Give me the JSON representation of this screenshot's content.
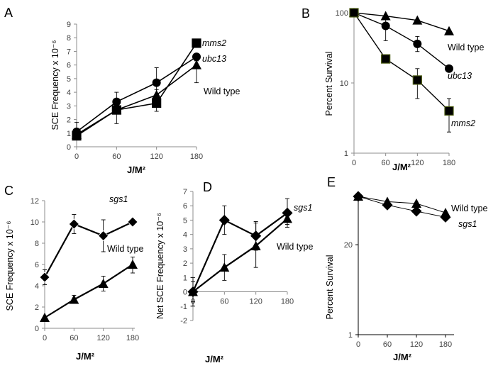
{
  "chart_data": [
    {
      "panel": "A",
      "type": "line",
      "title": "",
      "xlabel": "J/M²",
      "ylabel": "SCE Frequency x 10⁻⁶",
      "x": [
        0,
        60,
        120,
        180
      ],
      "xticks": [
        "0",
        "60",
        "120",
        "180"
      ],
      "yticks": [
        "0",
        "1",
        "2",
        "3",
        "4",
        "5",
        "6",
        "7",
        "8",
        "9"
      ],
      "ylim": [
        0,
        9
      ],
      "yscale": "linear",
      "grid": false,
      "series": [
        {
          "name": "mms2",
          "italic": true,
          "marker": "square",
          "values": [
            0.8,
            2.7,
            3.2,
            7.6
          ],
          "err_low": [
            0.5,
            1.7,
            2.6,
            null
          ],
          "err_high": [
            1.3,
            3.0,
            3.5,
            null
          ]
        },
        {
          "name": "ubc13",
          "italic": true,
          "marker": "circle",
          "values": [
            1.1,
            3.3,
            4.7,
            6.6
          ],
          "err_low": [
            0.5,
            2.8,
            3.8,
            null
          ],
          "err_high": [
            1.8,
            4.0,
            5.8,
            null
          ]
        },
        {
          "name": "Wild type",
          "italic": false,
          "marker": "triangle",
          "values": [
            0.9,
            2.7,
            3.8,
            6.0
          ],
          "err_low": [
            0.5,
            2.4,
            3.0,
            4.7
          ],
          "err_high": [
            1.3,
            3.0,
            4.2,
            6.3
          ]
        }
      ]
    },
    {
      "panel": "B",
      "type": "line",
      "xlabel": "J/M²",
      "ylabel": "Percent Survival",
      "x": [
        0,
        60,
        120,
        180
      ],
      "xticks": [
        "0",
        "60",
        "120",
        "180"
      ],
      "yticks": [
        "1",
        "10",
        "100"
      ],
      "ylim": [
        1,
        100
      ],
      "yscale": "log",
      "grid": false,
      "series": [
        {
          "name": "Wild type",
          "italic": false,
          "marker": "triangle",
          "values": [
            100,
            90,
            78,
            55
          ],
          "err_low": [
            null,
            null,
            null,
            null
          ],
          "err_high": [
            null,
            null,
            null,
            null
          ]
        },
        {
          "name": "ubc13",
          "italic": true,
          "marker": "circle",
          "values": [
            100,
            65,
            36,
            16
          ],
          "err_low": [
            null,
            40,
            28,
            null
          ],
          "err_high": [
            null,
            80,
            46,
            null
          ]
        },
        {
          "name": "mms2",
          "italic": true,
          "marker": "square",
          "values": [
            100,
            22,
            11,
            4
          ],
          "err_low": [
            null,
            null,
            6,
            2
          ],
          "err_high": [
            null,
            null,
            16,
            6
          ]
        }
      ]
    },
    {
      "panel": "C",
      "type": "line",
      "xlabel": "J/M²",
      "ylabel": "SCE Frequency x 10⁻⁶",
      "x": [
        0,
        60,
        120,
        180
      ],
      "xticks": [
        "0",
        "60",
        "120",
        "180"
      ],
      "yticks": [
        "0",
        "2",
        "4",
        "6",
        "8",
        "10",
        "12"
      ],
      "ylim": [
        0,
        12
      ],
      "yscale": "linear",
      "grid": false,
      "series": [
        {
          "name": "sgs1",
          "italic": true,
          "marker": "diamond",
          "values": [
            4.8,
            9.8,
            8.7,
            10.0
          ],
          "err_low": [
            4.1,
            8.9,
            7.2,
            null
          ],
          "err_high": [
            5.5,
            10.7,
            10.2,
            null
          ]
        },
        {
          "name": "Wild type",
          "italic": false,
          "marker": "triangle",
          "values": [
            1.0,
            2.7,
            4.2,
            6.0
          ],
          "err_low": [
            null,
            2.4,
            3.5,
            5.2
          ],
          "err_high": [
            null,
            3.1,
            4.9,
            6.7
          ]
        }
      ]
    },
    {
      "panel": "D",
      "type": "line",
      "xlabel": "J/M²",
      "ylabel": "Net SCE Frequency x 10⁻⁶",
      "x": [
        0,
        60,
        120,
        180
      ],
      "xticks": [
        "0",
        "60",
        "120",
        "180"
      ],
      "yticks": [
        "-2",
        "-1",
        "0",
        "1",
        "2",
        "3",
        "4",
        "5",
        "6",
        "7"
      ],
      "ylim": [
        -2,
        7
      ],
      "yscale": "linear",
      "grid": false,
      "series": [
        {
          "name": "sgs1",
          "italic": true,
          "marker": "diamond",
          "values": [
            0,
            5.0,
            3.9,
            5.5
          ],
          "err_low": [
            -1.0,
            4.0,
            2.9,
            4.5
          ],
          "err_high": [
            1.0,
            6.0,
            4.9,
            6.5
          ]
        },
        {
          "name": "Wild type",
          "italic": false,
          "marker": "triangle",
          "values": [
            0,
            1.7,
            3.2,
            5.1
          ],
          "err_low": [
            -0.7,
            0.8,
            1.7,
            4.7
          ],
          "err_high": [
            0.7,
            2.6,
            4.8,
            5.5
          ]
        }
      ]
    },
    {
      "panel": "E",
      "type": "line",
      "xlabel": "J/M²",
      "ylabel": "Percent Survival",
      "x": [
        0,
        60,
        120,
        180
      ],
      "xticks": [
        "0",
        "60",
        "120",
        "180"
      ],
      "yticks": [
        "1",
        "20"
      ],
      "ylim": [
        1,
        100
      ],
      "yscale": "log",
      "grid": false,
      "series": [
        {
          "name": "Wild type",
          "italic": false,
          "marker": "triangle",
          "values": [
            100,
            84,
            79,
            58
          ],
          "err_low": [
            null,
            null,
            null,
            null
          ],
          "err_high": [
            null,
            null,
            null,
            null
          ]
        },
        {
          "name": "sgs1",
          "italic": true,
          "marker": "diamond",
          "values": [
            100,
            75,
            61,
            50
          ],
          "err_low": [
            null,
            null,
            null,
            null
          ],
          "err_high": [
            null,
            null,
            null,
            null
          ]
        }
      ]
    }
  ]
}
